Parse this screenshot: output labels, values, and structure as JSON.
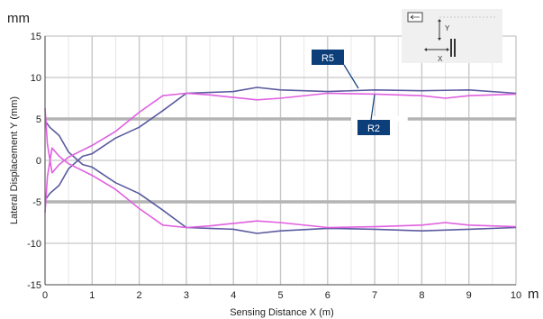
{
  "chart_data": {
    "type": "line",
    "title": "",
    "y_unit": "mm",
    "x_unit": "m",
    "xlabel": "Sensing Distance X (m)",
    "ylabel": "Lateral Displacement Y (mm)",
    "xlim": [
      0,
      10
    ],
    "ylim": [
      -15,
      15
    ],
    "x_ticks": [
      "0",
      "1",
      "2",
      "3",
      "4",
      "5",
      "6",
      "7",
      "8",
      "9",
      "10"
    ],
    "y_ticks": [
      "15",
      "10",
      "5",
      "0",
      "-5",
      "-10",
      "-15"
    ],
    "grid": true,
    "reference_lines_y": [
      5,
      -5
    ],
    "colors": {
      "R5": "#5a5aa0",
      "R2": "#e060e0",
      "label_box": "#0c3f7a"
    },
    "series": [
      {
        "name": "R5",
        "color": "#5a5aa0",
        "label": "R5",
        "upper": {
          "x": [
            0,
            0.1,
            0.3,
            0.5,
            0.8,
            1.0,
            1.5,
            2.0,
            2.5,
            3.0,
            3.5,
            4.0,
            4.5,
            5.0,
            6.0,
            7.0,
            8.0,
            9.0,
            10.0
          ],
          "y": [
            -4.8,
            -4.0,
            -3.0,
            -1.0,
            0.5,
            0.8,
            2.7,
            4.0,
            6.0,
            8.1,
            8.2,
            8.3,
            8.8,
            8.5,
            8.3,
            8.5,
            8.4,
            8.5,
            8.1
          ]
        },
        "lower": {
          "x": [
            0,
            0.1,
            0.3,
            0.5,
            0.8,
            1.0,
            1.5,
            2.0,
            2.5,
            3.0,
            3.5,
            4.0,
            4.5,
            5.0,
            6.0,
            7.0,
            8.0,
            9.0,
            10.0
          ],
          "y": [
            4.8,
            4.0,
            3.0,
            1.0,
            -0.5,
            -0.8,
            -2.7,
            -4.0,
            -6.0,
            -8.1,
            -8.2,
            -8.3,
            -8.8,
            -8.5,
            -8.2,
            -8.3,
            -8.5,
            -8.3,
            -8.1
          ]
        }
      },
      {
        "name": "R2",
        "color": "#e060e0",
        "label": "R2",
        "upper": {
          "x": [
            0,
            0.05,
            0.15,
            0.3,
            0.5,
            1.0,
            1.5,
            2.0,
            2.5,
            3.0,
            3.5,
            4.0,
            4.5,
            5.0,
            6.0,
            7.0,
            8.0,
            8.5,
            9.0,
            10.0
          ],
          "y": [
            6.3,
            2.0,
            -1.5,
            -0.5,
            0.4,
            1.8,
            3.5,
            5.8,
            7.8,
            8.1,
            7.9,
            7.6,
            7.3,
            7.5,
            8.1,
            8.0,
            7.8,
            7.5,
            7.8,
            8.0
          ]
        },
        "lower": {
          "x": [
            0,
            0.05,
            0.15,
            0.3,
            0.5,
            1.0,
            1.5,
            2.0,
            2.5,
            3.0,
            3.5,
            4.0,
            4.5,
            5.0,
            6.0,
            7.0,
            8.0,
            8.5,
            9.0,
            10.0
          ],
          "y": [
            -6.3,
            -2.0,
            1.5,
            0.5,
            -0.4,
            -1.8,
            -3.5,
            -5.8,
            -7.8,
            -8.1,
            -7.9,
            -7.6,
            -7.3,
            -7.5,
            -8.1,
            -8.0,
            -7.8,
            -7.5,
            -7.8,
            -8.0
          ]
        }
      }
    ],
    "inset": {
      "labels": [
        "Y",
        "X"
      ]
    }
  }
}
